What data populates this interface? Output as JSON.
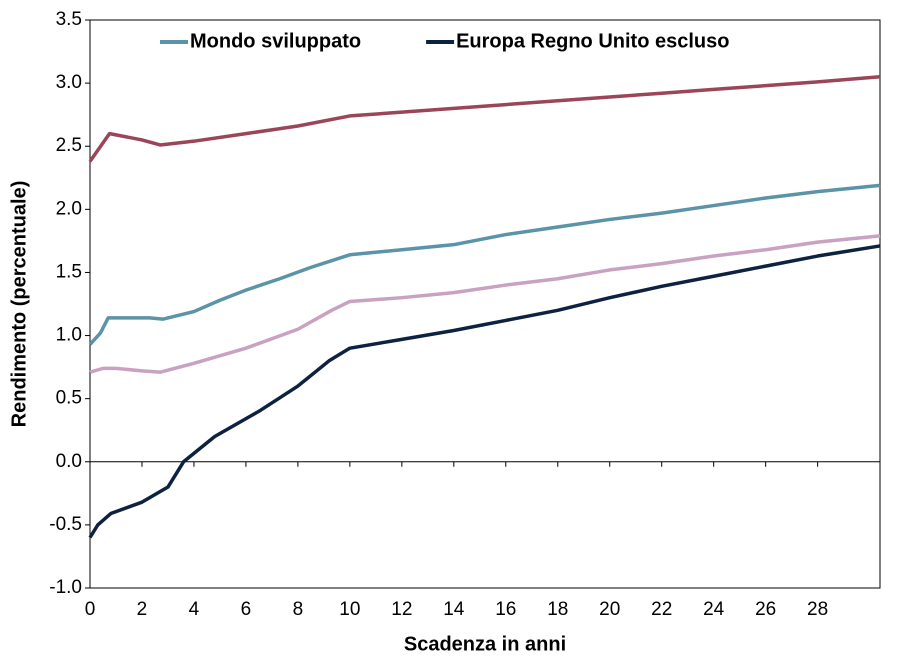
{
  "chart_data": {
    "type": "line",
    "xlabel": "Scadenza in anni",
    "ylabel": "Rendimento (percentuale)",
    "xlim": [
      0,
      30.4
    ],
    "ylim": [
      -1,
      3.5
    ],
    "xticks": [
      0,
      2,
      4,
      6,
      8,
      10,
      12,
      14,
      16,
      18,
      20,
      22,
      24,
      26,
      28
    ],
    "yticks": [
      {
        "value": -1,
        "label": "-1.0"
      },
      -0.5,
      {
        "value": 0,
        "label": "0.0"
      },
      0.5,
      {
        "value": 1,
        "label": "1.0"
      },
      1.5,
      {
        "value": 2,
        "label": "2.0"
      },
      2.5,
      {
        "value": 3,
        "label": "3.0"
      },
      3.5
    ],
    "legend": "top",
    "series": [
      {
        "color": "#9b4658",
        "x": [
          0,
          0.75,
          2,
          2.7,
          4,
          6,
          8,
          10,
          12,
          14,
          16,
          18,
          20,
          22,
          24,
          26,
          28,
          30.4
        ],
        "values": [
          2.38,
          2.6,
          2.55,
          2.51,
          2.54,
          2.6,
          2.66,
          2.74,
          2.77,
          2.8,
          2.83,
          2.86,
          2.89,
          2.92,
          2.95,
          2.98,
          3.01,
          3.05
        ]
      },
      {
        "name": "Mondo sviluppato",
        "color": "#5b93a8",
        "x": [
          0,
          0.4,
          0.7,
          2.3,
          2.8,
          4,
          5,
          6,
          7.3,
          8.5,
          10,
          12,
          14,
          16,
          18,
          20,
          22,
          24,
          26,
          28,
          30.4
        ],
        "values": [
          0.93,
          1.02,
          1.14,
          1.14,
          1.13,
          1.19,
          1.28,
          1.36,
          1.45,
          1.54,
          1.64,
          1.68,
          1.72,
          1.8,
          1.86,
          1.92,
          1.97,
          2.03,
          2.09,
          2.14,
          2.19
        ]
      },
      {
        "color": "#c8a2c0",
        "x": [
          0,
          0.5,
          1,
          2,
          2.7,
          4,
          6,
          8,
          9.3,
          10,
          12,
          14,
          16,
          18,
          20,
          22,
          24,
          26,
          28,
          30.4
        ],
        "values": [
          0.71,
          0.74,
          0.74,
          0.72,
          0.71,
          0.78,
          0.9,
          1.05,
          1.2,
          1.27,
          1.3,
          1.34,
          1.4,
          1.45,
          1.52,
          1.57,
          1.63,
          1.68,
          1.74,
          1.79
        ]
      },
      {
        "name": "Europa Regno Unito escluso",
        "color": "#0d2240",
        "x": [
          0,
          0.3,
          0.8,
          2,
          3,
          3.6,
          4.8,
          6.5,
          8,
          9.2,
          10,
          12,
          14,
          16,
          18,
          20,
          22,
          24,
          26,
          28,
          30.4
        ],
        "values": [
          -0.6,
          -0.5,
          -0.41,
          -0.32,
          -0.2,
          0,
          0.2,
          0.4,
          0.6,
          0.8,
          0.9,
          0.97,
          1.04,
          1.12,
          1.2,
          1.3,
          1.39,
          1.47,
          1.55,
          1.63,
          1.71
        ]
      }
    ]
  }
}
